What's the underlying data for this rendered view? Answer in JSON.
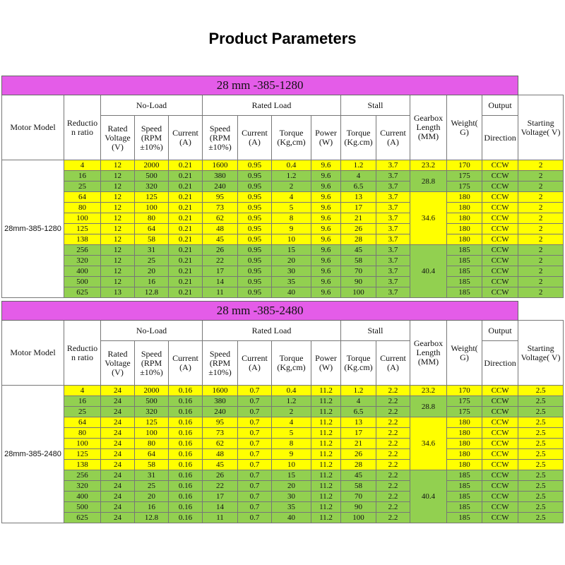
{
  "page_title": "Product Parameters",
  "headers": {
    "motor_model": "Motor Model",
    "reduction": "Reductio n ratio",
    "no_load": "No-Load",
    "rated_load": "Rated Load",
    "stall": "Stall",
    "output": "Output",
    "gearbox": "Gearbox Length (MM)",
    "weight": "Weight( G)",
    "direction": "Direction",
    "starting": "Starting Voltage( V)",
    "rated_voltage": "Rated Voltage (V)",
    "speed": "Speed (RPM ±10%)",
    "current": "Current (A)",
    "torque": "Torque (Kg,cm)",
    "power": "Power (W)",
    "stall_torque": "Torque (Kg.cm)"
  },
  "sections": [
    {
      "title": "28 mm -385-1280",
      "model": "28mm-385-1280",
      "rows": [
        [
          "4",
          "12",
          "2000",
          "0.21",
          "1600",
          "0.95",
          "0.4",
          "9.6",
          "1.2",
          "3.7",
          "23.2",
          "170",
          "CCW",
          "2"
        ],
        [
          "16",
          "12",
          "500",
          "0.21",
          "380",
          "0.95",
          "1.2",
          "9.6",
          "4",
          "3.7",
          "28.8",
          "175",
          "CCW",
          "2"
        ],
        [
          "25",
          "12",
          "320",
          "0.21",
          "240",
          "0.95",
          "2",
          "9.6",
          "6.5",
          "3.7",
          "",
          "175",
          "CCW",
          "2"
        ],
        [
          "64",
          "12",
          "125",
          "0.21",
          "95",
          "0.95",
          "4",
          "9.6",
          "13",
          "3.7",
          "34.6",
          "180",
          "CCW",
          "2"
        ],
        [
          "80",
          "12",
          "100",
          "0.21",
          "73",
          "0.95",
          "5",
          "9.6",
          "17",
          "3.7",
          "",
          "180",
          "CCW",
          "2"
        ],
        [
          "100",
          "12",
          "80",
          "0.21",
          "62",
          "0.95",
          "8",
          "9.6",
          "21",
          "3.7",
          "",
          "180",
          "CCW",
          "2"
        ],
        [
          "125",
          "12",
          "64",
          "0.21",
          "48",
          "0.95",
          "9",
          "9.6",
          "26",
          "3.7",
          "",
          "180",
          "CCW",
          "2"
        ],
        [
          "138",
          "12",
          "58",
          "0.21",
          "45",
          "0.95",
          "10",
          "9.6",
          "28",
          "3.7",
          "",
          "180",
          "CCW",
          "2"
        ],
        [
          "256",
          "12",
          "31",
          "0.21",
          "26",
          "0.95",
          "15",
          "9.6",
          "45",
          "3.7",
          "40.4",
          "185",
          "CCW",
          "2"
        ],
        [
          "320",
          "12",
          "25",
          "0.21",
          "22",
          "0.95",
          "20",
          "9.6",
          "58",
          "3.7",
          "",
          "185",
          "CCW",
          "2"
        ],
        [
          "400",
          "12",
          "20",
          "0.21",
          "17",
          "0.95",
          "30",
          "9.6",
          "70",
          "3.7",
          "",
          "185",
          "CCW",
          "2"
        ],
        [
          "500",
          "12",
          "16",
          "0.21",
          "14",
          "0.95",
          "35",
          "9.6",
          "90",
          "3.7",
          "",
          "185",
          "CCW",
          "2"
        ],
        [
          "625",
          "13",
          "12.8",
          "0.21",
          "11",
          "0.95",
          "40",
          "9.6",
          "100",
          "3.7",
          "",
          "185",
          "CCW",
          "2"
        ]
      ]
    },
    {
      "title": "28 mm -385-2480",
      "model": "28mm-385-2480",
      "rows": [
        [
          "4",
          "24",
          "2000",
          "0.16",
          "1600",
          "0.7",
          "0.4",
          "11.2",
          "1.2",
          "2.2",
          "23.2",
          "170",
          "CCW",
          "2.5"
        ],
        [
          "16",
          "24",
          "500",
          "0.16",
          "380",
          "0.7",
          "1.2",
          "11.2",
          "4",
          "2.2",
          "28.8",
          "175",
          "CCW",
          "2.5"
        ],
        [
          "25",
          "24",
          "320",
          "0.16",
          "240",
          "0.7",
          "2",
          "11.2",
          "6.5",
          "2.2",
          "",
          "175",
          "CCW",
          "2.5"
        ],
        [
          "64",
          "24",
          "125",
          "0.16",
          "95",
          "0.7",
          "4",
          "11.2",
          "13",
          "2.2",
          "34.6",
          "180",
          "CCW",
          "2.5"
        ],
        [
          "80",
          "24",
          "100",
          "0.16",
          "73",
          "0.7",
          "5",
          "11.2",
          "17",
          "2.2",
          "",
          "180",
          "CCW",
          "2.5"
        ],
        [
          "100",
          "24",
          "80",
          "0.16",
          "62",
          "0.7",
          "8",
          "11.2",
          "21",
          "2.2",
          "",
          "180",
          "CCW",
          "2.5"
        ],
        [
          "125",
          "24",
          "64",
          "0.16",
          "48",
          "0.7",
          "9",
          "11.2",
          "26",
          "2.2",
          "",
          "180",
          "CCW",
          "2.5"
        ],
        [
          "138",
          "24",
          "58",
          "0.16",
          "45",
          "0.7",
          "10",
          "11.2",
          "28",
          "2.2",
          "",
          "180",
          "CCW",
          "2.5"
        ],
        [
          "256",
          "24",
          "31",
          "0.16",
          "26",
          "0.7",
          "15",
          "11.2",
          "45",
          "2.2",
          "40.4",
          "185",
          "CCW",
          "2.5"
        ],
        [
          "320",
          "24",
          "25",
          "0.16",
          "22",
          "0.7",
          "20",
          "11.2",
          "58",
          "2.2",
          "",
          "185",
          "CCW",
          "2.5"
        ],
        [
          "400",
          "24",
          "20",
          "0.16",
          "17",
          "0.7",
          "30",
          "11.2",
          "70",
          "2.2",
          "",
          "185",
          "CCW",
          "2.5"
        ],
        [
          "500",
          "24",
          "16",
          "0.16",
          "14",
          "0.7",
          "35",
          "11.2",
          "90",
          "2.2",
          "",
          "185",
          "CCW",
          "2.5"
        ],
        [
          "625",
          "24",
          "12.8",
          "0.16",
          "11",
          "0.7",
          "40",
          "11.2",
          "100",
          "2.2",
          "",
          "185",
          "CCW",
          "2.5"
        ]
      ]
    }
  ],
  "colors": {
    "title_bar": "#e45ce8",
    "yellow": "#ffff00",
    "green": "#92d050"
  }
}
